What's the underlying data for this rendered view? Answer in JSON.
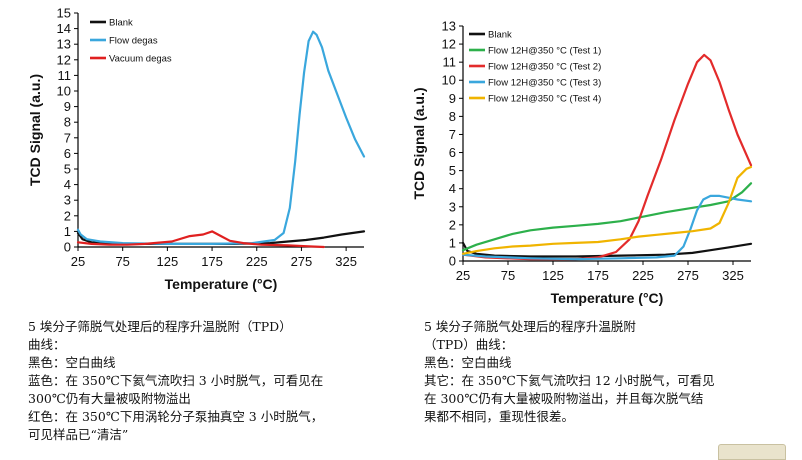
{
  "chart_data": [
    {
      "type": "line",
      "xlabel": "Temperature (°C)",
      "ylabel": "TCD Signal (a.u.)",
      "xlim": [
        25,
        345
      ],
      "ylim": [
        0,
        15
      ],
      "xticks": [
        25,
        75,
        125,
        175,
        225,
        275,
        325
      ],
      "yticks": [
        0,
        1,
        2,
        3,
        4,
        5,
        6,
        7,
        8,
        9,
        10,
        11,
        12,
        13,
        14,
        15
      ],
      "legend_position": "top-left",
      "series": [
        {
          "name": "Blank",
          "color": "#111111",
          "x": [
            25,
            30,
            40,
            60,
            100,
            150,
            200,
            240,
            260,
            280,
            300,
            320,
            345
          ],
          "y": [
            0.9,
            0.5,
            0.3,
            0.22,
            0.2,
            0.2,
            0.2,
            0.25,
            0.35,
            0.45,
            0.6,
            0.8,
            1.0
          ]
        },
        {
          "name": "Flow degas",
          "color": "#3aa7dd",
          "x": [
            25,
            28,
            35,
            50,
            75,
            125,
            175,
            220,
            245,
            255,
            262,
            268,
            273,
            278,
            283,
            288,
            292,
            298,
            305,
            315,
            325,
            335,
            345
          ],
          "y": [
            1.1,
            0.8,
            0.5,
            0.35,
            0.25,
            0.2,
            0.2,
            0.25,
            0.45,
            0.9,
            2.5,
            5.5,
            8.5,
            11.2,
            13.2,
            13.8,
            13.6,
            12.8,
            11.3,
            9.8,
            8.3,
            6.9,
            5.8
          ]
        },
        {
          "name": "Vacuum degas",
          "color": "#e02020",
          "x": [
            25,
            40,
            60,
            80,
            100,
            130,
            150,
            165,
            175,
            185,
            195,
            210,
            230,
            260,
            280,
            300
          ],
          "y": [
            0.3,
            0.2,
            0.15,
            0.15,
            0.2,
            0.35,
            0.7,
            0.8,
            1.0,
            0.7,
            0.4,
            0.25,
            0.15,
            0.1,
            0.05,
            0.0
          ]
        }
      ]
    },
    {
      "type": "line",
      "xlabel": "Temperature (°C)",
      "ylabel": "TCD Signal (a.u.)",
      "xlim": [
        25,
        345
      ],
      "ylim": [
        0,
        13
      ],
      "xticks": [
        25,
        75,
        125,
        175,
        225,
        275,
        325
      ],
      "yticks": [
        0,
        1,
        2,
        3,
        4,
        5,
        6,
        7,
        8,
        9,
        10,
        11,
        12,
        13
      ],
      "legend_position": "top-left",
      "series": [
        {
          "name": "Blank",
          "color": "#111111",
          "x": [
            25,
            30,
            40,
            60,
            100,
            150,
            200,
            250,
            280,
            300,
            320,
            345
          ],
          "y": [
            1.0,
            0.55,
            0.4,
            0.3,
            0.25,
            0.25,
            0.3,
            0.35,
            0.45,
            0.6,
            0.75,
            0.95
          ]
        },
        {
          "name": "Flow 12H@350 °C (Test 1)",
          "color": "#2db04b",
          "x": [
            25,
            40,
            60,
            80,
            100,
            125,
            150,
            175,
            200,
            225,
            250,
            275,
            300,
            320,
            335,
            345
          ],
          "y": [
            0.6,
            0.9,
            1.2,
            1.5,
            1.7,
            1.85,
            1.95,
            2.05,
            2.2,
            2.45,
            2.7,
            2.9,
            3.1,
            3.3,
            3.8,
            4.3
          ]
        },
        {
          "name": "Flow 12H@350 °C (Test 2)",
          "color": "#e32b2b",
          "x": [
            25,
            50,
            100,
            150,
            175,
            195,
            210,
            220,
            230,
            245,
            260,
            275,
            285,
            293,
            300,
            310,
            320,
            330,
            345
          ],
          "y": [
            0.35,
            0.2,
            0.1,
            0.1,
            0.2,
            0.5,
            1.2,
            2.2,
            3.6,
            5.6,
            7.8,
            9.8,
            11.0,
            11.4,
            11.1,
            9.9,
            8.4,
            7.0,
            5.3
          ]
        },
        {
          "name": "Flow 12H@350 °C (Test 3)",
          "color": "#3aa7dd",
          "x": [
            25,
            50,
            75,
            100,
            150,
            200,
            240,
            260,
            270,
            278,
            285,
            292,
            300,
            310,
            320,
            330,
            345
          ],
          "y": [
            0.35,
            0.25,
            0.2,
            0.15,
            0.1,
            0.15,
            0.2,
            0.3,
            0.8,
            1.8,
            2.8,
            3.4,
            3.6,
            3.6,
            3.5,
            3.4,
            3.3
          ]
        },
        {
          "name": "Flow 12H@350 °C (Test 4)",
          "color": "#f0b400",
          "x": [
            25,
            40,
            60,
            80,
            100,
            125,
            150,
            175,
            200,
            220,
            240,
            260,
            280,
            300,
            310,
            320,
            330,
            340,
            345
          ],
          "y": [
            0.4,
            0.55,
            0.7,
            0.8,
            0.85,
            0.95,
            1.0,
            1.05,
            1.2,
            1.35,
            1.45,
            1.55,
            1.65,
            1.8,
            2.1,
            3.2,
            4.6,
            5.1,
            5.2
          ]
        }
      ]
    }
  ],
  "captions": {
    "left": [
      "5 埃分子筛脱气处理后的程序升温脱附（TPD）",
      "曲线：",
      "黑色：空白曲线",
      "蓝色：在 350℃下氦气流吹扫 3 小时脱气，可看见在",
      "300℃仍有大量被吸附物溢出",
      "红色：在 350℃下用涡轮分子泵抽真空 3 小时脱气，",
      "可见样品已“清洁”"
    ],
    "right": [
      "5 埃分子筛脱气处理后的程序升温脱附",
      "（TPD）曲线：",
      "黑色：空白曲线",
      "其它：在 350℃下氦气流吹扫 12 小时脱气，可看见",
      "在 300℃仍有大量被吸附物溢出，并且每次脱气结",
      "果都不相同，重现性很差。"
    ]
  }
}
